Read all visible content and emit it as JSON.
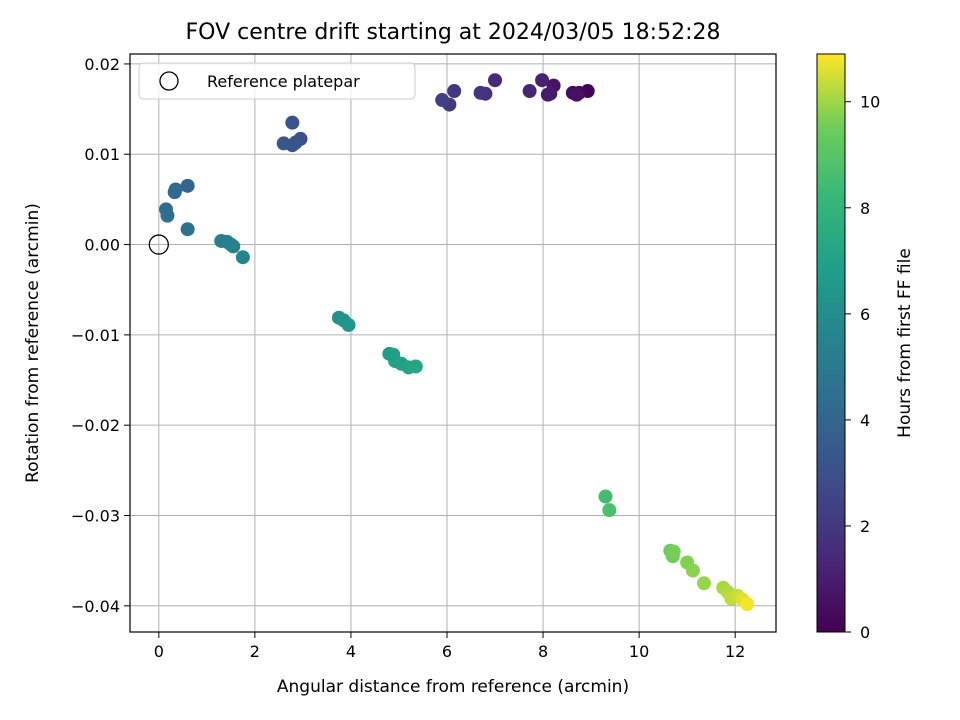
{
  "chart_data": {
    "type": "scatter",
    "title": "FOV centre drift starting at 2024/03/05 18:52:28",
    "xlabel": "Angular distance from reference (arcmin)",
    "ylabel": "Rotation from reference (arcmin)",
    "xlim": [
      -0.6,
      12.85
    ],
    "ylim": [
      -0.0429,
      0.0211
    ],
    "xticks": [
      0,
      2,
      4,
      6,
      8,
      10,
      12
    ],
    "xtick_labels": [
      "0",
      "2",
      "4",
      "6",
      "8",
      "10",
      "12"
    ],
    "yticks": [
      0.02,
      0.01,
      0.0,
      -0.01,
      -0.02,
      -0.03,
      -0.04
    ],
    "ytick_labels": [
      "0.02",
      "0.01",
      "0.00",
      "−0.01",
      "−0.02",
      "−0.03",
      "−0.04"
    ],
    "grid": true,
    "legend": {
      "position": "top-left",
      "entries": [
        "Reference platepar"
      ]
    },
    "reference_point": {
      "x": 0,
      "y": 0
    },
    "colorbar": {
      "label": "Hours from first FF file",
      "range": [
        0,
        10.9
      ],
      "ticks": [
        0,
        2,
        4,
        6,
        8,
        10
      ],
      "tick_labels": [
        "0",
        "2",
        "4",
        "6",
        "8",
        "10"
      ],
      "colormap": "viridis"
    },
    "points": [
      {
        "x": 8.93,
        "y": 0.017,
        "t": 0.1
      },
      {
        "x": 8.75,
        "y": 0.0168,
        "t": 0.25
      },
      {
        "x": 8.62,
        "y": 0.0168,
        "t": 0.4
      },
      {
        "x": 8.7,
        "y": 0.0166,
        "t": 0.55
      },
      {
        "x": 8.22,
        "y": 0.0176,
        "t": 0.7
      },
      {
        "x": 8.1,
        "y": 0.0166,
        "t": 0.85
      },
      {
        "x": 8.15,
        "y": 0.0167,
        "t": 1.0
      },
      {
        "x": 7.98,
        "y": 0.0182,
        "t": 1.15
      },
      {
        "x": 7.72,
        "y": 0.017,
        "t": 1.3
      },
      {
        "x": 7.0,
        "y": 0.0182,
        "t": 1.5
      },
      {
        "x": 6.8,
        "y": 0.0167,
        "t": 1.65
      },
      {
        "x": 6.7,
        "y": 0.0168,
        "t": 1.8
      },
      {
        "x": 6.15,
        "y": 0.017,
        "t": 2.0
      },
      {
        "x": 6.05,
        "y": 0.0155,
        "t": 2.15
      },
      {
        "x": 5.9,
        "y": 0.016,
        "t": 2.3
      },
      {
        "x": 2.95,
        "y": 0.0117,
        "t": 3.0
      },
      {
        "x": 2.85,
        "y": 0.0113,
        "t": 3.1
      },
      {
        "x": 2.78,
        "y": 0.0135,
        "t": 3.2
      },
      {
        "x": 2.78,
        "y": 0.011,
        "t": 3.3
      },
      {
        "x": 2.6,
        "y": 0.0112,
        "t": 3.4
      },
      {
        "x": 0.6,
        "y": 0.0065,
        "t": 4.0
      },
      {
        "x": 0.35,
        "y": 0.0061,
        "t": 4.1
      },
      {
        "x": 0.33,
        "y": 0.0058,
        "t": 4.2
      },
      {
        "x": 0.15,
        "y": 0.0039,
        "t": 4.3
      },
      {
        "x": 0.18,
        "y": 0.0032,
        "t": 4.4
      },
      {
        "x": 0.6,
        "y": 0.0017,
        "t": 4.55
      },
      {
        "x": 1.3,
        "y": 0.0004,
        "t": 5.2
      },
      {
        "x": 1.42,
        "y": 0.0003,
        "t": 5.3
      },
      {
        "x": 1.5,
        "y": 0.0,
        "t": 5.4
      },
      {
        "x": 1.55,
        "y": -0.0002,
        "t": 5.5
      },
      {
        "x": 1.75,
        "y": -0.0014,
        "t": 5.6
      },
      {
        "x": 3.75,
        "y": -0.0081,
        "t": 6.2
      },
      {
        "x": 3.85,
        "y": -0.0084,
        "t": 6.3
      },
      {
        "x": 3.95,
        "y": -0.0089,
        "t": 6.4
      },
      {
        "x": 4.8,
        "y": -0.0121,
        "t": 6.7
      },
      {
        "x": 4.88,
        "y": -0.0122,
        "t": 6.8
      },
      {
        "x": 4.92,
        "y": -0.0129,
        "t": 6.9
      },
      {
        "x": 5.05,
        "y": -0.0132,
        "t": 7.0
      },
      {
        "x": 5.2,
        "y": -0.0136,
        "t": 7.1
      },
      {
        "x": 5.35,
        "y": -0.0135,
        "t": 7.2
      },
      {
        "x": 9.3,
        "y": -0.0279,
        "t": 8.5
      },
      {
        "x": 9.38,
        "y": -0.0294,
        "t": 8.7
      },
      {
        "x": 10.65,
        "y": -0.0339,
        "t": 9.4
      },
      {
        "x": 10.7,
        "y": -0.0345,
        "t": 9.5
      },
      {
        "x": 10.72,
        "y": -0.034,
        "t": 9.6
      },
      {
        "x": 11.0,
        "y": -0.0352,
        "t": 9.7
      },
      {
        "x": 11.12,
        "y": -0.0361,
        "t": 9.8
      },
      {
        "x": 11.35,
        "y": -0.0375,
        "t": 9.9
      },
      {
        "x": 11.75,
        "y": -0.038,
        "t": 10.1
      },
      {
        "x": 11.85,
        "y": -0.0385,
        "t": 10.2
      },
      {
        "x": 11.92,
        "y": -0.0392,
        "t": 10.3
      },
      {
        "x": 12.05,
        "y": -0.0389,
        "t": 10.4
      },
      {
        "x": 12.15,
        "y": -0.0393,
        "t": 10.6
      },
      {
        "x": 12.25,
        "y": -0.0398,
        "t": 10.8
      }
    ]
  }
}
